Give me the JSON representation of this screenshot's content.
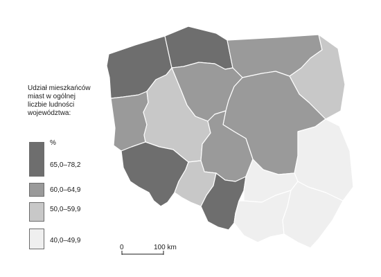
{
  "legend": {
    "title": "Udział mieszkańców\nmiast w ogólnej\nliczbie ludności\nwojewództwa:",
    "unit": "%",
    "classes": [
      {
        "label": "65,0–78,2",
        "color": "#6e6e6e"
      },
      {
        "label": "60,0–64,9",
        "color": "#9a9a9a"
      },
      {
        "label": "50,0–59,9",
        "color": "#c8c8c8"
      },
      {
        "label": "40,0–49,9",
        "color": "#efefef"
      }
    ]
  },
  "scale": {
    "start": "0",
    "end": "100 km"
  },
  "regions": [
    {
      "id": "zachodniopomorskie",
      "class": 0
    },
    {
      "id": "pomorskie",
      "class": 0
    },
    {
      "id": "warminsko-mazurskie",
      "class": 1
    },
    {
      "id": "podlaskie",
      "class": 2
    },
    {
      "id": "lubuskie",
      "class": 1
    },
    {
      "id": "kujawsko-pomorskie",
      "class": 1
    },
    {
      "id": "wielkopolskie",
      "class": 2
    },
    {
      "id": "mazowieckie",
      "class": 1
    },
    {
      "id": "dolnoslaskie",
      "class": 0
    },
    {
      "id": "lodzkie",
      "class": 1
    },
    {
      "id": "lubelskie",
      "class": 3
    },
    {
      "id": "opolskie",
      "class": 2
    },
    {
      "id": "slaskie",
      "class": 0
    },
    {
      "id": "swietokrzyskie",
      "class": 3
    },
    {
      "id": "malopolskie",
      "class": 3
    },
    {
      "id": "podkarpackie",
      "class": 3
    }
  ]
}
